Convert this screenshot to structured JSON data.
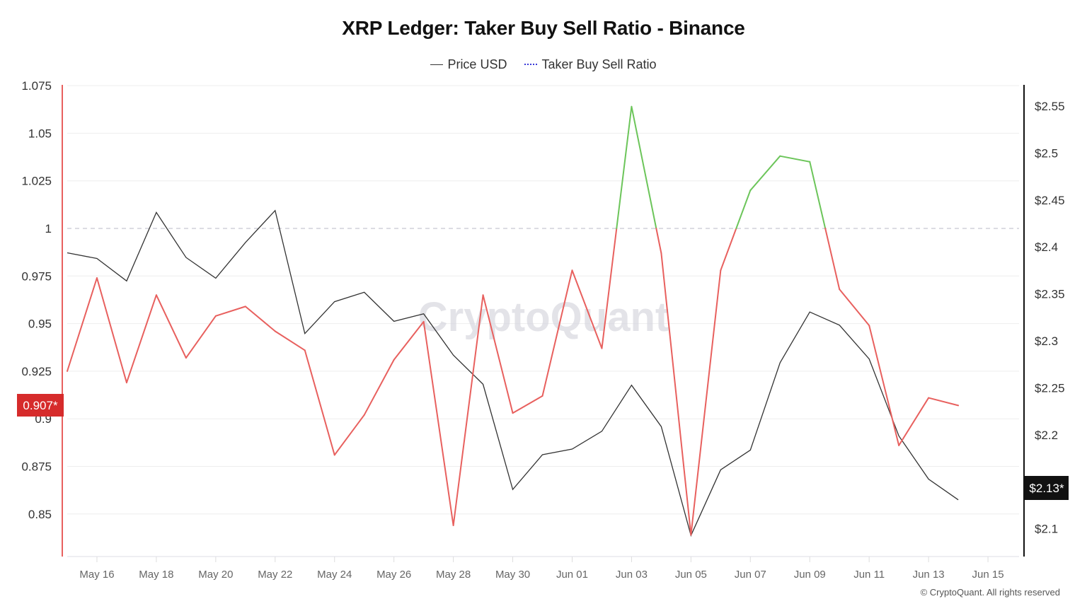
{
  "title": "XRP Ledger: Taker Buy Sell Ratio - Binance",
  "legend": [
    {
      "label": "Price USD",
      "color": "#333333"
    },
    {
      "label": "Taker Buy Sell Ratio",
      "color": "#3a3ad8"
    }
  ],
  "watermark": "CryptoQuant",
  "copyright": "© CryptoQuant. All rights reserved",
  "colors": {
    "ratio_above": "#6cc55a",
    "ratio_below": "#e8605e",
    "price": "#333333",
    "left_axis": "#e8605e",
    "right_axis": "#111111",
    "ratio_badge": "#d62b2b",
    "price_badge": "#111111",
    "grid": "#eeeeee",
    "reference_line": "#c8c8d2"
  },
  "badges": {
    "ratio_current": "0.907*",
    "price_current": "$2.13*"
  },
  "chart_data": {
    "type": "line",
    "title": "XRP Ledger: Taker Buy Sell Ratio - Binance",
    "xlabel": "",
    "ylabel_left": "Taker Buy Sell Ratio",
    "ylabel_right": "Price USD",
    "x": [
      "May 15",
      "May 16",
      "May 17",
      "May 18",
      "May 19",
      "May 20",
      "May 21",
      "May 22",
      "May 23",
      "May 24",
      "May 25",
      "May 26",
      "May 27",
      "May 28",
      "May 29",
      "May 30",
      "May 31",
      "Jun 01",
      "Jun 02",
      "Jun 03",
      "Jun 04",
      "Jun 05",
      "Jun 06",
      "Jun 07",
      "Jun 08",
      "Jun 09",
      "Jun 10",
      "Jun 11",
      "Jun 12",
      "Jun 13",
      "Jun 14"
    ],
    "series": [
      {
        "name": "Taker Buy Sell Ratio",
        "axis": "left",
        "values": [
          0.925,
          0.974,
          0.919,
          0.965,
          0.932,
          0.954,
          0.959,
          0.946,
          0.936,
          0.881,
          0.902,
          0.931,
          0.951,
          0.844,
          0.965,
          0.903,
          0.912,
          0.978,
          0.937,
          1.064,
          0.987,
          0.839,
          0.978,
          1.02,
          1.038,
          1.035,
          0.968,
          0.949,
          0.886,
          0.911,
          0.907
        ]
      },
      {
        "name": "Price USD",
        "axis": "right",
        "values": [
          2.393,
          2.387,
          2.363,
          2.436,
          2.388,
          2.366,
          2.404,
          2.438,
          2.307,
          2.341,
          2.351,
          2.32,
          2.328,
          2.284,
          2.253,
          2.141,
          2.178,
          2.184,
          2.203,
          2.252,
          2.208,
          2.092,
          2.162,
          2.183,
          2.276,
          2.33,
          2.316,
          2.28,
          2.198,
          2.152,
          2.13
        ]
      }
    ],
    "reference_line": 1,
    "ylim_left": [
      0.826,
      1.075
    ],
    "ylim_right": [
      2.07,
      2.57
    ],
    "left_ticks": [
      "1.075",
      "1.05",
      "1.025",
      "1",
      "0.975",
      "0.95",
      "0.925",
      "0.9",
      "0.875",
      "0.85"
    ],
    "right_ticks": [
      "$2.55",
      "$2.5",
      "$2.45",
      "$2.4",
      "$2.35",
      "$2.3",
      "$2.25",
      "$2.2",
      "$2.15",
      "$2.1"
    ],
    "x_ticks": [
      "May 16",
      "May 18",
      "May 20",
      "May 22",
      "May 24",
      "May 26",
      "May 28",
      "May 30",
      "Jun 01",
      "Jun 03",
      "Jun 05",
      "Jun 07",
      "Jun 09",
      "Jun 11",
      "Jun 13",
      "Jun 15"
    ],
    "grid": true,
    "legend_position": "top"
  }
}
